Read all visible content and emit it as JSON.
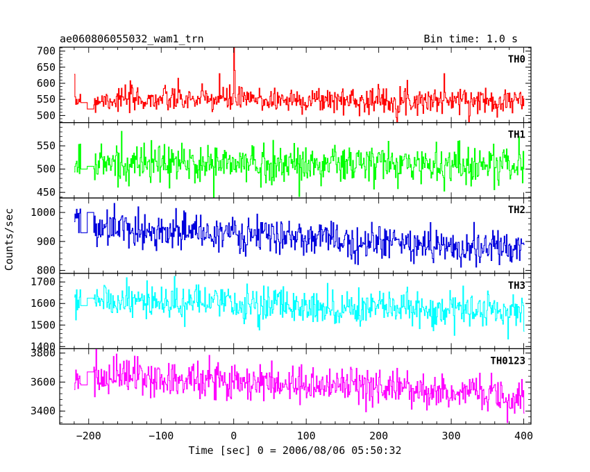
{
  "header": {
    "title": "ae060806055032_wam1_trn",
    "bin_time": "Bin time: 1.0 s"
  },
  "chart_data": {
    "type": "line",
    "title": "ae060806055032_wam1_trn",
    "subtitle": "Bin time: 1.0 s",
    "xlabel": "Time [sec] 0 = 2006/08/06 05:50:32",
    "ylabel": "Counts/sec",
    "xlim": [
      -240,
      410
    ],
    "x_ticks": [
      -200,
      -100,
      0,
      100,
      200,
      300,
      400
    ],
    "x_tick_labels": [
      "−200",
      "−100",
      "0",
      "100",
      "200",
      "300",
      "400"
    ],
    "grid": false,
    "line_style": "steps",
    "segments": [
      [
        -220,
        -211
      ],
      [
        -211,
        -193
      ],
      [
        -193,
        400
      ]
    ],
    "series": [
      {
        "name": "TH0",
        "color": "#ff0000",
        "ylim": [
          478,
          712
        ],
        "y_ticks": [
          500,
          550,
          600,
          650,
          700
        ],
        "pre_level": 550,
        "gap_levels": [
          540,
          520
        ],
        "start_trend": 550,
        "end_trend": 547,
        "noise_sd": 20,
        "spikes": [
          [
            0,
            712
          ],
          [
            1,
            640
          ],
          [
            290,
            630
          ],
          [
            -20,
            630
          ]
        ]
      },
      {
        "name": "TH1",
        "color": "#00ff00",
        "ylim": [
          438,
          600
        ],
        "y_ticks": [
          450,
          500,
          550
        ],
        "pre_level": 510,
        "gap_levels": [
          500,
          506
        ],
        "start_trend": 512,
        "end_trend": 510,
        "noise_sd": 22,
        "spikes": []
      },
      {
        "name": "TH2",
        "color": "#0000dd",
        "ylim": [
          790,
          1050
        ],
        "y_ticks": [
          800,
          900,
          1000
        ],
        "pre_level": 980,
        "gap_levels": [
          930,
          1000
        ],
        "start_trend": 950,
        "end_trend": 870,
        "noise_sd": 30,
        "spikes": []
      },
      {
        "name": "TH3",
        "color": "#00ffff",
        "ylim": [
          1390,
          1740
        ],
        "y_ticks": [
          1400,
          1500,
          1600,
          1700
        ],
        "pre_level": 1610,
        "gap_levels": [
          1590,
          1625
        ],
        "start_trend": 1615,
        "end_trend": 1560,
        "noise_sd": 40,
        "spikes": []
      },
      {
        "name": "TH0123",
        "color": "#ff00ff",
        "ylim": [
          3310,
          3830
        ],
        "y_ticks": [
          3400,
          3600,
          3800
        ],
        "pre_level": 3630,
        "gap_levels": [
          3580,
          3670
        ],
        "start_trend": 3650,
        "end_trend": 3510,
        "noise_sd": 65,
        "spikes": []
      }
    ]
  }
}
